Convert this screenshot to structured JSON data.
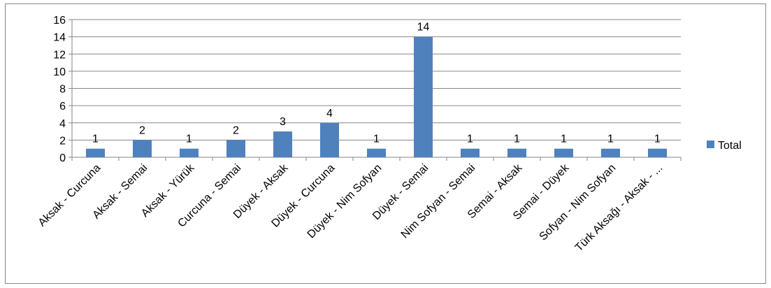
{
  "chart_data": {
    "type": "bar",
    "categories": [
      "Aksak - Curcuna",
      "Aksak - Semai",
      "Aksak - Yürük",
      "Curcuna - Semai",
      "Düyek - Aksak",
      "Düyek - Curcuna",
      "Düyek - Nim Sofyan",
      "Düyek - Semai",
      "Nim Sofyan - Semai",
      "Semai - Aksak",
      "Semai - Düyek",
      "Sofyan - Nim Sofyan",
      "Türk Aksağı - Aksak - ..."
    ],
    "series": [
      {
        "name": "Total",
        "values": [
          1,
          2,
          1,
          2,
          3,
          4,
          1,
          14,
          1,
          1,
          1,
          1,
          1
        ],
        "color": "#4F81BD"
      }
    ],
    "ylim": [
      0,
      16
    ],
    "yticks": [
      0,
      2,
      4,
      6,
      8,
      10,
      12,
      14,
      16
    ],
    "grid": true,
    "legend_position": "right",
    "data_labels": true
  }
}
